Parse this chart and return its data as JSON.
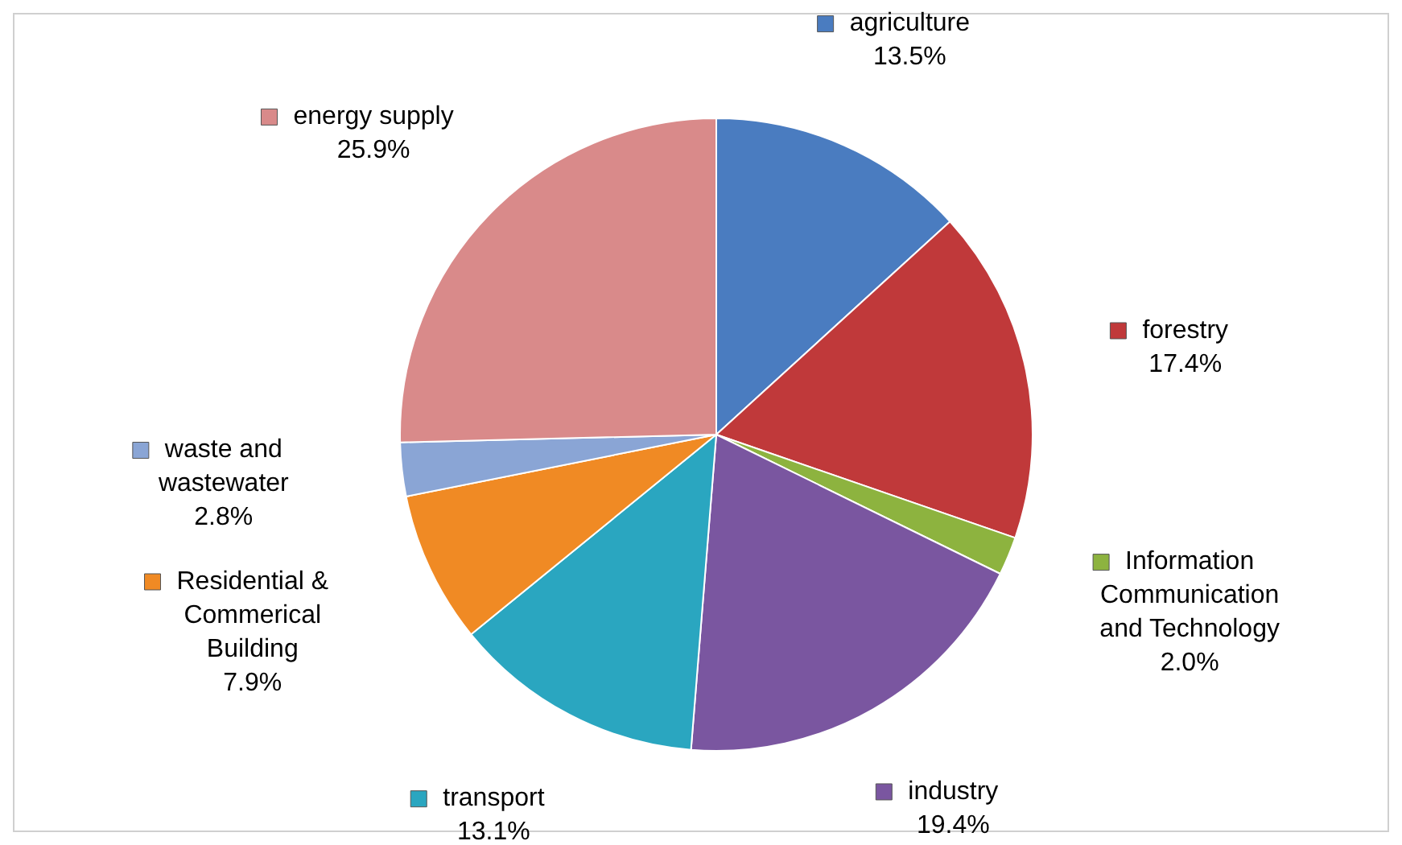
{
  "chart_data": {
    "type": "pie",
    "categories": [
      "agriculture",
      "forestry",
      "Information Communication and Technology",
      "industry",
      "transport",
      "Residential & Commerical Building",
      "waste and wastewater",
      "energy supply"
    ],
    "values": [
      13.5,
      17.4,
      2.0,
      19.4,
      13.1,
      7.9,
      2.8,
      25.9
    ],
    "colors": [
      "#4a7cc0",
      "#c0393a",
      "#8db33f",
      "#7a56a0",
      "#2aa6c0",
      "#f08a24",
      "#8aa5d5",
      "#d98a8a"
    ],
    "value_labels": [
      "13.5%",
      "17.4%",
      "2.0%",
      "19.4%",
      "13.1%",
      "7.9%",
      "2.8%",
      "25.9%"
    ],
    "legend": "top left"
  }
}
